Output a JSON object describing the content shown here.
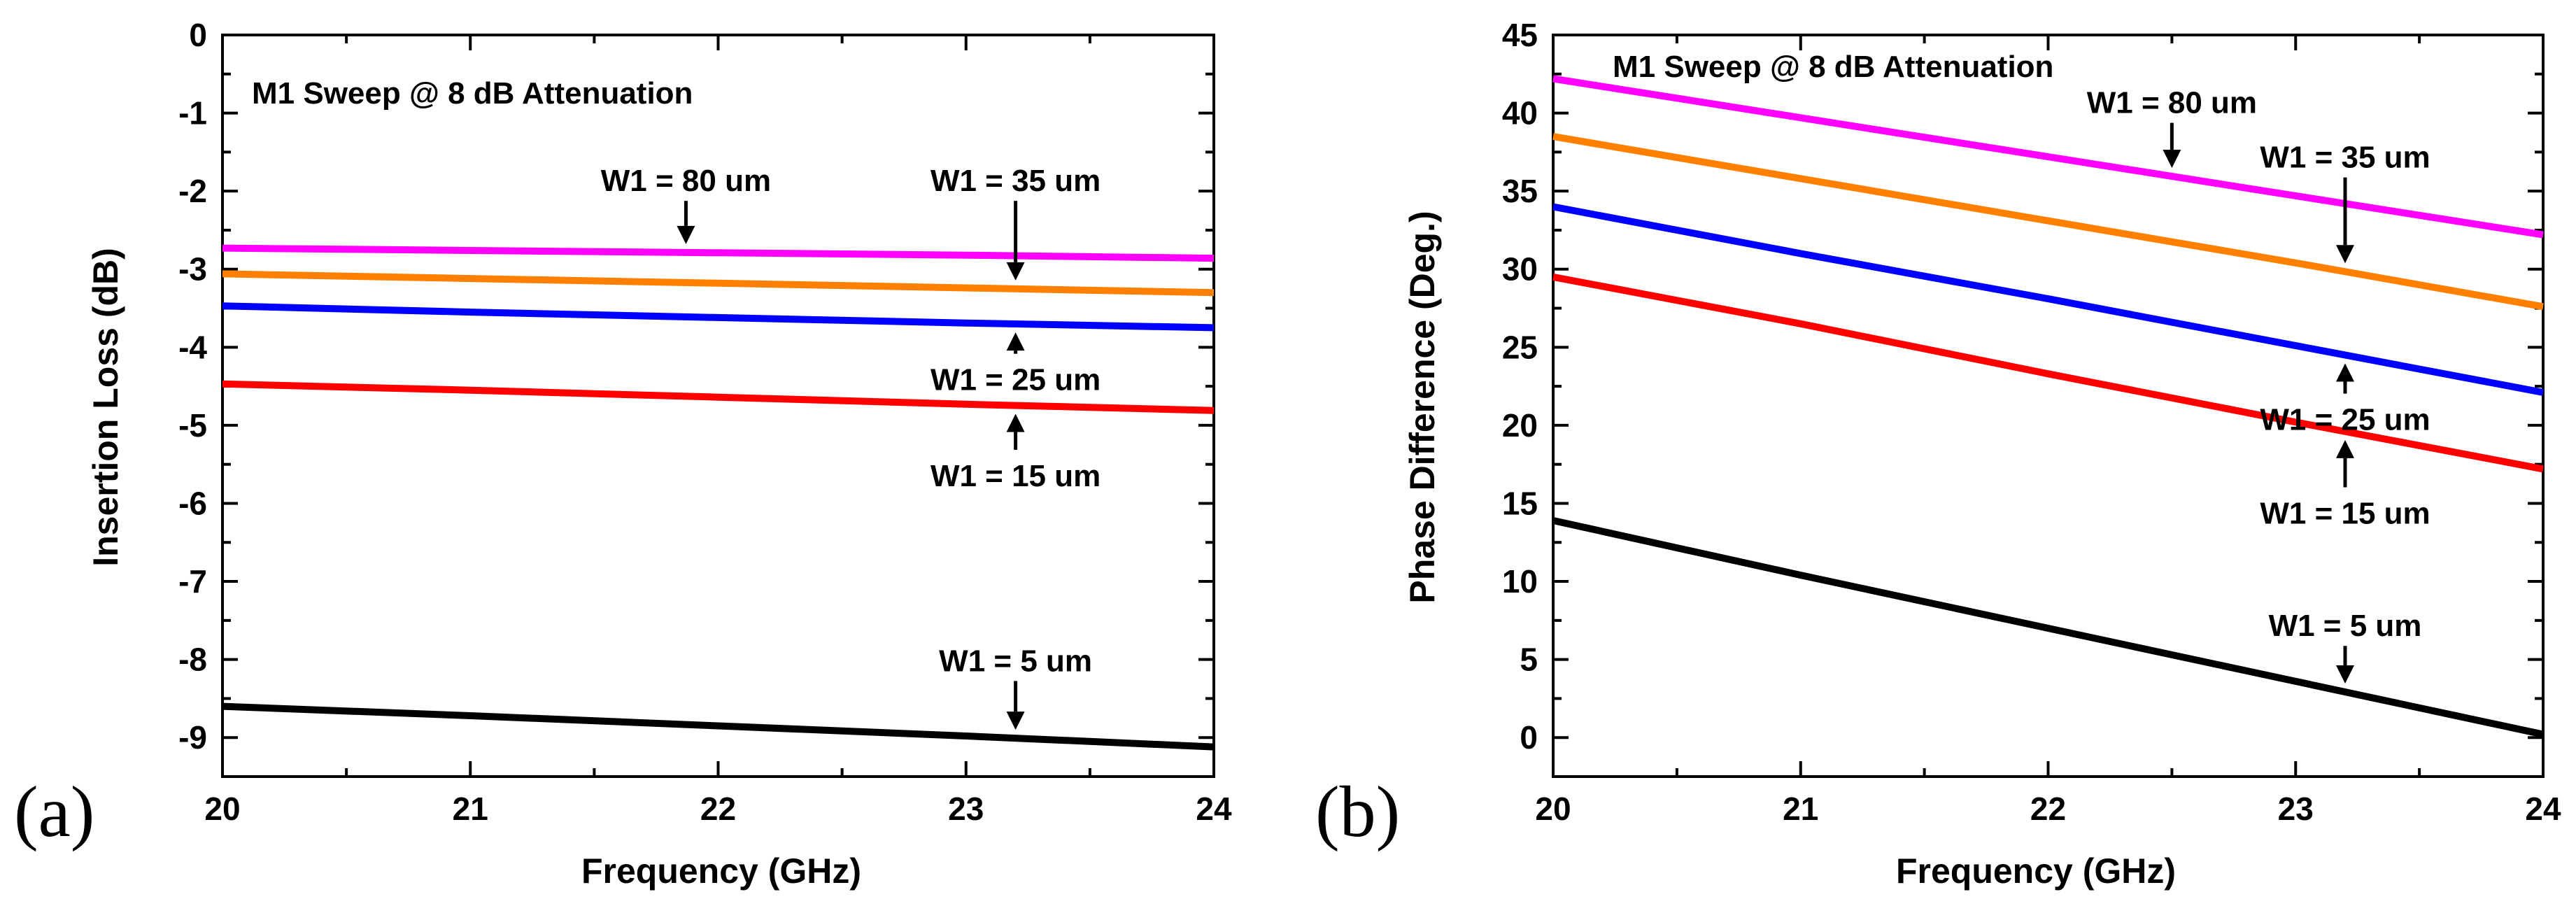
{
  "colors": {
    "w1_80": "#ff00ff",
    "w1_35": "#ff8000",
    "w1_25": "#0000ff",
    "w1_15": "#ff0000",
    "w1_5": "#000000",
    "axis": "#000000"
  },
  "chart_data": [
    {
      "panel_label": "(a)",
      "type": "line",
      "title": "M1 Sweep @ 8 dB Attenuation",
      "xlabel": "Frequency (GHz)",
      "ylabel": "Insertion Loss (dB)",
      "xlim": [
        20,
        24
      ],
      "ylim": [
        -9.5,
        0
      ],
      "xticks": [
        "20",
        "21",
        "22",
        "23",
        "24"
      ],
      "yticks": [
        "0",
        "-1",
        "-2",
        "-3",
        "-4",
        "-5",
        "-6",
        "-7",
        "-8",
        "-9"
      ],
      "x": [
        20,
        21,
        22,
        23,
        24
      ],
      "series": [
        {
          "name": "W1 = 80 um",
          "color": "#ff00ff",
          "values": [
            -2.73,
            -2.76,
            -2.79,
            -2.82,
            -2.86
          ]
        },
        {
          "name": "W1 = 35 um",
          "color": "#ff8000",
          "values": [
            -3.06,
            -3.12,
            -3.18,
            -3.24,
            -3.3
          ]
        },
        {
          "name": "W1 = 25 um",
          "color": "#0000ff",
          "values": [
            -3.47,
            -3.55,
            -3.62,
            -3.69,
            -3.75
          ]
        },
        {
          "name": "W1 = 15 um",
          "color": "#ff0000",
          "values": [
            -4.47,
            -4.55,
            -4.64,
            -4.73,
            -4.81
          ]
        },
        {
          "name": "W1 = 5 um",
          "color": "#000000",
          "values": [
            -8.6,
            -8.72,
            -8.85,
            -8.98,
            -9.12
          ]
        }
      ],
      "annotations": [
        {
          "text": "W1 = 80 um",
          "series": "W1 = 80 um",
          "arrow_x": 21.87,
          "direction": "down",
          "label_y": -2.0
        },
        {
          "text": "W1 = 35 um",
          "series": "W1 = 35 um",
          "arrow_x": 23.2,
          "direction": "down",
          "label_y": -2.0
        },
        {
          "text": "W1 = 25 um",
          "series": "W1 = 25 um",
          "arrow_x": 23.2,
          "direction": "up",
          "label_y": -4.55
        },
        {
          "text": "W1 = 15 um",
          "series": "W1 = 15 um",
          "arrow_x": 23.2,
          "direction": "up",
          "label_y": -5.78
        },
        {
          "text": "W1 = 5 um",
          "series": "W1 = 5 um",
          "arrow_x": 23.2,
          "direction": "down",
          "label_y": -8.15
        }
      ]
    },
    {
      "panel_label": "(b)",
      "type": "line",
      "title": "M1 Sweep @ 8 dB Attenuation",
      "xlabel": "Frequency (GHz)",
      "ylabel": "Phase Difference (Deg.)",
      "xlim": [
        20,
        24
      ],
      "ylim": [
        -2.5,
        45
      ],
      "xticks": [
        "20",
        "21",
        "22",
        "23",
        "24"
      ],
      "yticks": [
        "0",
        "5",
        "10",
        "15",
        "20",
        "25",
        "30",
        "35",
        "40",
        "45"
      ],
      "x": [
        20,
        21,
        22,
        23,
        24
      ],
      "series": [
        {
          "name": "W1 = 80 um",
          "color": "#ff00ff",
          "values": [
            42.2,
            39.7,
            37.2,
            34.7,
            32.2
          ]
        },
        {
          "name": "W1 = 35 um",
          "color": "#ff8000",
          "values": [
            38.5,
            35.8,
            33.1,
            30.4,
            27.6
          ]
        },
        {
          "name": "W1 = 25 um",
          "color": "#0000ff",
          "values": [
            34.0,
            31.0,
            28.1,
            25.1,
            22.1
          ]
        },
        {
          "name": "W1 = 15 um",
          "color": "#ff0000",
          "values": [
            29.5,
            26.5,
            23.3,
            20.2,
            17.2
          ]
        },
        {
          "name": "W1 = 5 um",
          "color": "#000000",
          "values": [
            13.9,
            10.4,
            7.0,
            3.6,
            0.2
          ]
        }
      ],
      "annotations": [
        {
          "text": "W1 = 80 um",
          "series": "W1 = 80 um",
          "arrow_x": 22.5,
          "direction": "down",
          "label_y": 40.0
        },
        {
          "text": "W1 = 35 um",
          "series": "W1 = 35 um",
          "arrow_x": 23.2,
          "direction": "down",
          "label_y": 36.5
        },
        {
          "text": "W1 = 25 um",
          "series": "W1 = 25 um",
          "arrow_x": 23.2,
          "direction": "up",
          "label_y": 19.7
        },
        {
          "text": "W1 = 15 um",
          "series": "W1 = 15 um",
          "arrow_x": 23.2,
          "direction": "up",
          "label_y": 13.7
        },
        {
          "text": "W1 = 5 um",
          "series": "W1 = 5 um",
          "arrow_x": 23.2,
          "direction": "down",
          "label_y": 6.5
        }
      ]
    }
  ]
}
